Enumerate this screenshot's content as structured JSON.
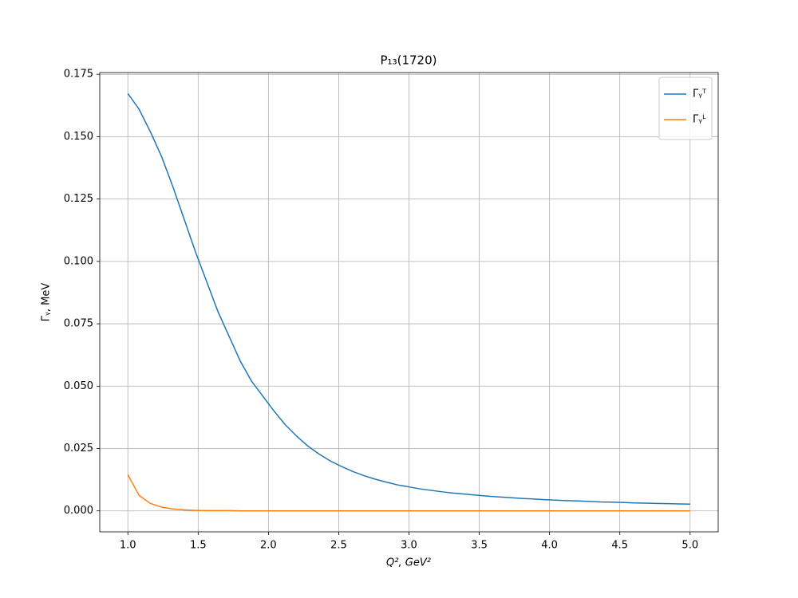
{
  "chart_data": {
    "type": "line",
    "title": "P₁₃(1720)",
    "x_label": "Q², GeV²",
    "y_label": "Γᵧ, MeV",
    "x": [
      1,
      1.08,
      1.16,
      1.24,
      1.32,
      1.4,
      1.48,
      1.56,
      1.64,
      1.72,
      1.8,
      1.88,
      1.96,
      2.04,
      2.12,
      2.2,
      2.28,
      2.36,
      2.44,
      2.52,
      2.6,
      2.68,
      2.76,
      2.84,
      2.92,
      3.0,
      3.08,
      3.16,
      3.24,
      3.32,
      3.4,
      3.48,
      3.56,
      3.64,
      3.72,
      3.8,
      3.88,
      3.96,
      4.04,
      4.12,
      4.2,
      4.28,
      4.36,
      4.44,
      4.52,
      4.6,
      4.68,
      4.76,
      4.84,
      4.92,
      5.0
    ],
    "series": [
      {
        "name": "Γᵧᵀ",
        "color": "#1f77b4",
        "values": [
          0.1673,
          0.161,
          0.152,
          0.142,
          0.13,
          0.117,
          0.104,
          0.092,
          0.08,
          0.07,
          0.06,
          0.052,
          0.046,
          0.04,
          0.0345,
          0.03,
          0.026,
          0.0228,
          0.02,
          0.0178,
          0.0158,
          0.0141,
          0.0127,
          0.0115,
          0.0104,
          0.0096,
          0.0088,
          0.0082,
          0.0076,
          0.0071,
          0.0067,
          0.0063,
          0.0059,
          0.0056,
          0.0053,
          0.005,
          0.0048,
          0.0045,
          0.0043,
          0.0041,
          0.004,
          0.0038,
          0.0036,
          0.0035,
          0.0034,
          0.0032,
          0.0031,
          0.003,
          0.0029,
          0.0028,
          0.0027
        ]
      },
      {
        "name": "Γᵧᴸ",
        "color": "#ff7f0e",
        "values": [
          0.0145,
          0.0062,
          0.003,
          0.0015,
          0.0008,
          0.0004,
          0.0002,
          0.0001,
          0.0001,
          0.0001,
          0,
          0,
          0,
          0,
          0,
          0,
          0,
          0,
          0,
          0,
          0,
          0,
          0,
          0,
          0,
          0,
          0,
          0,
          0,
          0,
          0,
          0,
          0,
          0,
          0,
          0,
          0,
          0,
          0,
          0,
          0,
          0,
          0,
          0,
          0,
          0,
          0,
          0,
          0,
          0,
          0
        ]
      }
    ],
    "xlim": [
      0.8,
      5.2
    ],
    "ylim": [
      -0.0084,
      0.1757
    ],
    "xticks": [
      {
        "value": 1,
        "label": "1.0"
      },
      {
        "value": 1.5,
        "label": "1.5"
      },
      {
        "value": 2,
        "label": "2.0"
      },
      {
        "value": 2.5,
        "label": "2.5"
      },
      {
        "value": 3,
        "label": "3.0"
      },
      {
        "value": 3.5,
        "label": "3.5"
      },
      {
        "value": 4,
        "label": "4.0"
      },
      {
        "value": 4.5,
        "label": "4.5"
      },
      {
        "value": 5,
        "label": "5.0"
      }
    ],
    "yticks": [
      {
        "value": 0,
        "label": "0.000"
      },
      {
        "value": 0.025,
        "label": "0.025"
      },
      {
        "value": 0.05,
        "label": "0.050"
      },
      {
        "value": 0.075,
        "label": "0.075"
      },
      {
        "value": 0.1,
        "label": "0.100"
      },
      {
        "value": 0.125,
        "label": "0.125"
      },
      {
        "value": 0.15,
        "label": "0.150"
      },
      {
        "value": 0.175,
        "label": "0.175"
      }
    ],
    "grid": true,
    "legend": "upper right"
  }
}
